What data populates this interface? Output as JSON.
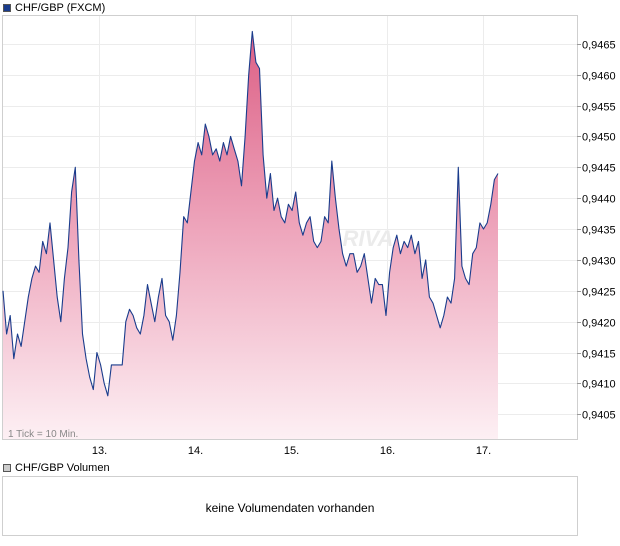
{
  "chart_data": {
    "type": "area",
    "legend": {
      "price_label": "CHF/GBP (FXCM)",
      "price_color": "#1a3c8c",
      "volume_label": "CHF/GBP Volumen",
      "volume_color": "#cccccc"
    },
    "x_ticks": [
      "13.",
      "14.",
      "15.",
      "16.",
      "17."
    ],
    "y_ticks": [
      "0,9405",
      "0,9410",
      "0,9415",
      "0,9420",
      "0,9425",
      "0,9430",
      "0,9435",
      "0,9440",
      "0,9445",
      "0,9450",
      "0,9455",
      "0,9460",
      "0,9465"
    ],
    "ylim": [
      0.9401,
      0.94695
    ],
    "tick_note": "1 Tick = 10 Min.",
    "volume_message": "keine Volumendaten vorhanden",
    "watermark": "ARIVA",
    "series": [
      {
        "values": [
          0.9425,
          0.9418,
          0.9421,
          0.9414,
          0.9418,
          0.9416,
          0.942,
          0.9424,
          0.9427,
          0.9429,
          0.9428,
          0.9433,
          0.9431,
          0.9436,
          0.943,
          0.9424,
          0.942,
          0.9427,
          0.9432,
          0.9441,
          0.9445,
          0.943,
          0.9418,
          0.9414,
          0.9411,
          0.9409,
          0.9415,
          0.9413,
          0.941,
          0.9408,
          0.9413,
          0.9413,
          0.9413,
          0.9413,
          0.942,
          0.9422,
          0.9421,
          0.9419,
          0.9418,
          0.9421,
          0.9426,
          0.9423,
          0.942,
          0.9424,
          0.9427,
          0.9421,
          0.942,
          0.9417,
          0.9421,
          0.9428,
          0.9437,
          0.9436,
          0.9441,
          0.9446,
          0.9449,
          0.9447,
          0.9452,
          0.945,
          0.9447,
          0.9448,
          0.9446,
          0.9449,
          0.9447,
          0.945,
          0.9448,
          0.9446,
          0.9442,
          0.945,
          0.946,
          0.9467,
          0.9462,
          0.9461,
          0.9447,
          0.944,
          0.9444,
          0.9438,
          0.944,
          0.9437,
          0.9436,
          0.9439,
          0.9438,
          0.9441,
          0.9436,
          0.9434,
          0.9436,
          0.9437,
          0.9433,
          0.9432,
          0.9433,
          0.9437,
          0.9436,
          0.9446,
          0.944,
          0.9435,
          0.9431,
          0.9429,
          0.9431,
          0.9431,
          0.9428,
          0.9429,
          0.9431,
          0.9427,
          0.9423,
          0.9427,
          0.9426,
          0.9426,
          0.9421,
          0.9428,
          0.9432,
          0.9434,
          0.9431,
          0.9433,
          0.9432,
          0.9434,
          0.9431,
          0.9433,
          0.9427,
          0.943,
          0.9424,
          0.9423,
          0.9421,
          0.9419,
          0.9421,
          0.9424,
          0.9423,
          0.9427,
          0.9445,
          0.9429,
          0.9427,
          0.9426,
          0.9431,
          0.9432,
          0.9436,
          0.9435,
          0.9436,
          0.9439,
          0.9443,
          0.9444
        ]
      }
    ]
  }
}
